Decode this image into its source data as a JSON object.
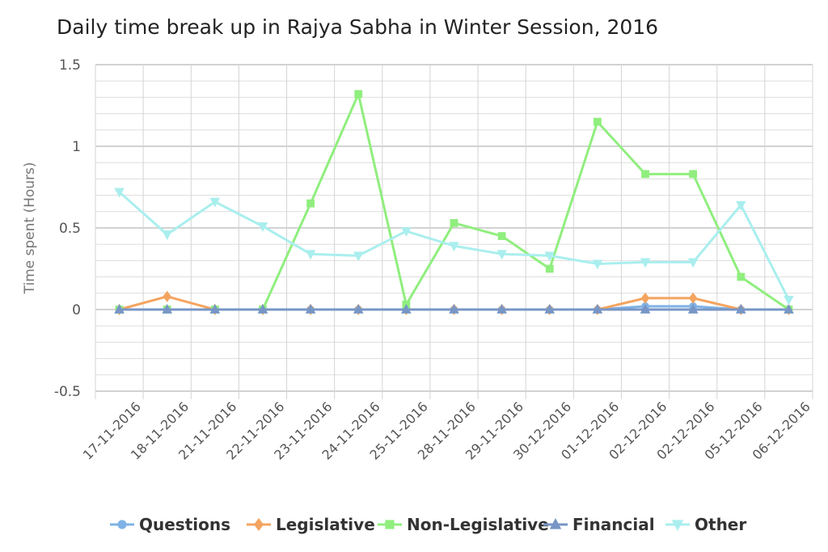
{
  "chart_data": {
    "type": "line",
    "title": "Daily time break up in Rajya Sabha in Winter Session, 2016",
    "ylabel": "Time spent (Hours)",
    "xlabel": "",
    "ylim": [
      -0.5,
      1.5
    ],
    "yticks": [
      "-0.5",
      "0",
      "0.5",
      "1",
      "1.5"
    ],
    "ytick_values": [
      -0.5,
      0,
      0.5,
      1,
      1.5
    ],
    "grid": true,
    "legend_position": "bottom",
    "categories": [
      "17-11-2016",
      "18-11-2016",
      "21-11-2016",
      "22-11-2016",
      "23-11-2016",
      "24-11-2016",
      "25-11-2016",
      "28-11-2016",
      "29-11-2016",
      "30-12-2016",
      "01-12-2016",
      "02-12-2016",
      "02-12-2016",
      "05-12-2016",
      "06-12-2016"
    ],
    "series": [
      {
        "name": "Questions",
        "color": "#7fb2e5",
        "marker": "circle",
        "values": [
          0,
          0,
          0,
          0,
          0,
          0,
          0,
          0,
          0,
          0,
          0,
          0.02,
          0.02,
          0,
          0
        ]
      },
      {
        "name": "Legislative",
        "color": "#f4a460",
        "marker": "diamond",
        "values": [
          0,
          0.08,
          0,
          0,
          0,
          0,
          0,
          0,
          0,
          0,
          0,
          0.07,
          0.07,
          0,
          0
        ]
      },
      {
        "name": "Non-Legislative",
        "color": "#90ee7e",
        "marker": "square",
        "values": [
          0,
          0,
          0,
          0,
          0.65,
          1.32,
          0.03,
          0.53,
          0.45,
          0.25,
          1.15,
          0.83,
          0.83,
          0.2,
          0
        ]
      },
      {
        "name": "Financial",
        "color": "#7796c6",
        "marker": "triangle",
        "values": [
          0,
          0,
          0,
          0,
          0,
          0,
          0,
          0,
          0,
          0,
          0,
          0,
          0,
          0,
          0
        ]
      },
      {
        "name": "Other",
        "color": "#aaeeee",
        "marker": "triangle-down",
        "values": [
          0.72,
          0.46,
          0.66,
          0.51,
          0.34,
          0.33,
          0.48,
          0.39,
          0.34,
          0.33,
          0.28,
          0.29,
          0.29,
          0.64,
          0.06
        ]
      }
    ]
  }
}
